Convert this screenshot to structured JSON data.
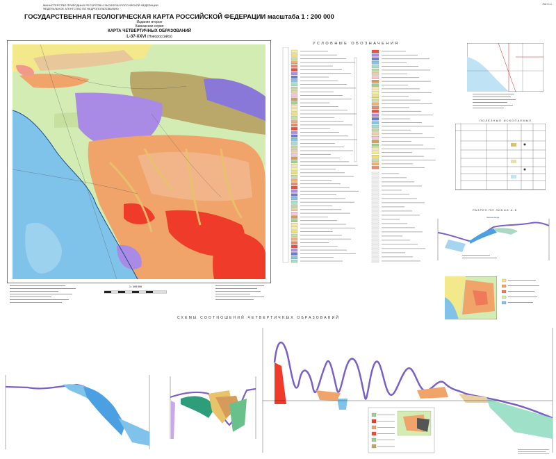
{
  "header": {
    "ministry_lines": [
      "МИНИСТЕРСТВО ПРИРОДНЫХ РЕСУРСОВ И ЭКОЛОГИИ РОССИЙСКОЙ ФЕДЕРАЦИИ",
      "ФЕДЕРАЛЬНОЕ АГЕНТСТВО ПО НЕДРОПОЛЬЗОВАНИЮ"
    ],
    "title": "ГОСУДАРСТВЕННАЯ ГЕОЛОГИЧЕСКАЯ КАРТА РОССИЙСКОЙ ФЕДЕРАЦИИ масштаба 1 : 200 000",
    "edition": "Издание второе",
    "series": "Кавказская серия",
    "subtitle": "КАРТА ЧЕТВЕРТИЧНЫХ ОБРАЗОВАНИЙ",
    "sheet_code": "L-37-XXVI",
    "sheet_name": "(Новороссийск)",
    "corner_id": "Лист 1-1"
  },
  "legend": {
    "title": "УСЛОВНЫЕ ОБОЗНАЧЕНИЯ",
    "colors": [
      "#f4f09a",
      "#efe070",
      "#c6e0a0",
      "#f2b070",
      "#e88a6a",
      "#ef4d3b",
      "#b48be0",
      "#6a7bd0",
      "#7fc6e8",
      "#9ee0c8",
      "#c4d4a0",
      "#e8d0a0",
      "#f5c6d8",
      "#d69a5a",
      "#9fd08a",
      "#f7e6a8"
    ]
  },
  "fossil_table": {
    "title": "ПОЛЕЗНЫЕ ИСКОПАЕМЫЕ"
  },
  "section": {
    "title": "РАЗРЕЗ ПО ЛИНИИ А-Б",
    "sea_label": "Черное море"
  },
  "schemes": {
    "title": "СХЕМЫ СООТНОШЕНИЙ ЧЕТВЕРТИЧНЫХ ОБРАЗОВАНИЙ"
  },
  "map": {
    "scale_label": "1 : 200 000",
    "colors": {
      "sea": "#7fc3ea",
      "lilac": "#a98be6",
      "orange": "#f0a46a",
      "red": "#ee3b2a",
      "olive": "#b9a86a",
      "lightgreen": "#d3ecb4",
      "yellow": "#f3e98a"
    }
  }
}
